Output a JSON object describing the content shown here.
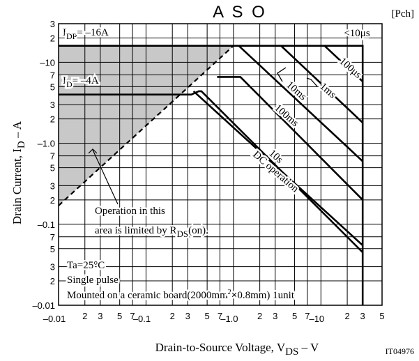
{
  "chart_data": {
    "type": "line",
    "title": "A S O",
    "tag": "[Pch]",
    "figure_code": "IT04976",
    "xlabel": {
      "main": "Drain-to-Source Voltage, V",
      "sub": "DS",
      "unit": "  –  V"
    },
    "ylabel": {
      "main": "Drain Current, I",
      "sub": "D",
      "unit": "  –  A"
    },
    "x_scale": "log",
    "y_scale": "log",
    "xlim": [
      0.01,
      50
    ],
    "ylim": [
      0.01,
      30
    ],
    "grid": true,
    "x_ticks": [
      {
        "v": 0.01,
        "t": "–0.01"
      },
      {
        "v": 0.02,
        "t": "2"
      },
      {
        "v": 0.03,
        "t": "3"
      },
      {
        "v": 0.05,
        "t": "5"
      },
      {
        "v": 0.07,
        "t": "7"
      },
      {
        "v": 0.1,
        "t": "–0.1"
      },
      {
        "v": 0.2,
        "t": "2"
      },
      {
        "v": 0.3,
        "t": "3"
      },
      {
        "v": 0.5,
        "t": "5"
      },
      {
        "v": 0.7,
        "t": "7"
      },
      {
        "v": 1,
        "t": "–1.0"
      },
      {
        "v": 2,
        "t": "2"
      },
      {
        "v": 3,
        "t": "3"
      },
      {
        "v": 5,
        "t": "5"
      },
      {
        "v": 7,
        "t": "7"
      },
      {
        "v": 10,
        "t": "–10"
      },
      {
        "v": 20,
        "t": "2"
      },
      {
        "v": 30,
        "t": "3"
      },
      {
        "v": 50,
        "t": "5"
      }
    ],
    "y_ticks": [
      {
        "v": 30,
        "t": "3"
      },
      {
        "v": 20,
        "t": "2"
      },
      {
        "v": 10,
        "t": "–10"
      },
      {
        "v": 7,
        "t": "7"
      },
      {
        "v": 5,
        "t": "5"
      },
      {
        "v": 3,
        "t": "3"
      },
      {
        "v": 2,
        "t": "2"
      },
      {
        "v": 1,
        "t": "–1.0"
      },
      {
        "v": 0.7,
        "t": "7"
      },
      {
        "v": 0.5,
        "t": "5"
      },
      {
        "v": 0.3,
        "t": "3"
      },
      {
        "v": 0.2,
        "t": "2"
      },
      {
        "v": 0.1,
        "t": "–0.1"
      },
      {
        "v": 0.07,
        "t": "7"
      },
      {
        "v": 0.05,
        "t": "5"
      },
      {
        "v": 0.03,
        "t": "3"
      },
      {
        "v": 0.02,
        "t": "2"
      },
      {
        "v": 0.01,
        "t": "–0.01"
      }
    ],
    "series": [
      {
        "name": "DC operation",
        "points": [
          [
            0.01,
            4
          ],
          [
            0.33,
            4
          ],
          [
            0.4,
            4.4
          ],
          [
            0.43,
            4.4
          ],
          [
            30,
            0.045
          ]
        ]
      },
      {
        "name": "10s",
        "points": [
          [
            0.35,
            4.4
          ],
          [
            30,
            0.055
          ]
        ]
      },
      {
        "name": "100ms",
        "points": [
          [
            0.65,
            6.6
          ],
          [
            1.2,
            6.6
          ],
          [
            30,
            0.2
          ]
        ]
      },
      {
        "name": "10ms",
        "points": [
          [
            1.15,
            16
          ],
          [
            30,
            0.6
          ]
        ]
      },
      {
        "name": "1ms",
        "points": [
          [
            3.5,
            16
          ],
          [
            30,
            1.8
          ]
        ]
      },
      {
        "name": "100μs",
        "points": [
          [
            11,
            16
          ],
          [
            30,
            5.8
          ]
        ]
      },
      {
        "name": "<10μs",
        "points": [
          [
            0.01,
            16
          ],
          [
            30,
            16
          ],
          [
            30,
            0.01
          ]
        ]
      }
    ],
    "rds_limit_line": [
      [
        0.01,
        0.17
      ],
      [
        1.0,
        16
      ]
    ],
    "shaded_region": "area above R_DS(on) limit line",
    "annotations": {
      "idp": {
        "pre": "I",
        "sub": "DP",
        "post": "= –16A"
      },
      "id": {
        "pre": "I",
        "sub": "D",
        "post": "= –4A"
      },
      "us10": "<10μs",
      "us100": "100μs",
      "ms1": "1ms",
      "ms10": "10ms",
      "ms100": "100ms",
      "s10": "10s",
      "dc": "DC operation",
      "op_line1": "Operation in this",
      "op_line2_pre": "area is limited by R",
      "op_line2_sub": "DS",
      "op_line2_post": "(on).",
      "ta": "Ta=25°C",
      "single": "Single pulse",
      "mounted_pre": "Mounted on a ceramic board(2000mm",
      "mounted_sup": "2",
      "mounted_x": "×",
      "mounted_post": "0.8mm) 1unit"
    }
  }
}
